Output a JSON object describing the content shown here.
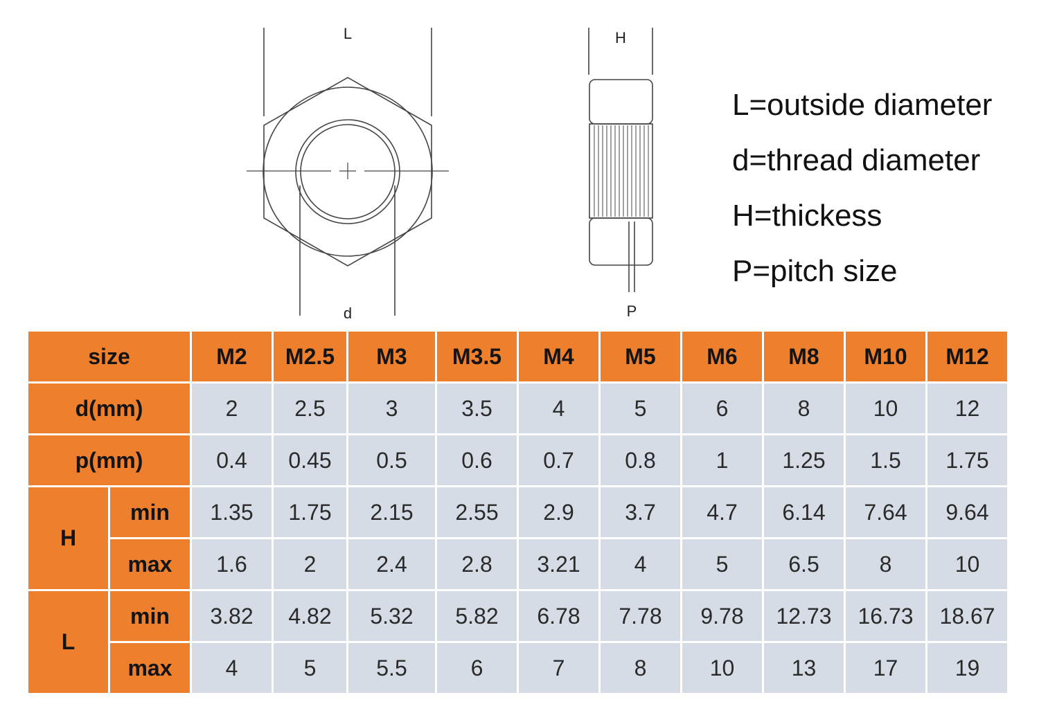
{
  "diagram": {
    "front_view_top_label": "L",
    "front_view_bottom_label": "d",
    "side_view_top_label": "H",
    "side_view_bottom_label": "P"
  },
  "legend": [
    "L=outside diameter",
    "d=thread diameter",
    "H=thickess",
    "P=pitch size"
  ],
  "table": {
    "header_label": "size",
    "sizes": [
      "M2",
      "M2.5",
      "M3",
      "M3.5",
      "M4",
      "M5",
      "M6",
      "M8",
      "M10",
      "M12"
    ],
    "d_label": "d(mm)",
    "d_values": [
      "2",
      "2.5",
      "3",
      "3.5",
      "4",
      "5",
      "6",
      "8",
      "10",
      "12"
    ],
    "p_label": "p(mm)",
    "p_values": [
      "0.4",
      "0.45",
      "0.5",
      "0.6",
      "0.7",
      "0.8",
      "1",
      "1.25",
      "1.5",
      "1.75"
    ],
    "H_label": "H",
    "H_min_label": "min",
    "H_min": [
      "1.35",
      "1.75",
      "2.15",
      "2.55",
      "2.9",
      "3.7",
      "4.7",
      "6.14",
      "7.64",
      "9.64"
    ],
    "H_max_label": "max",
    "H_max": [
      "1.6",
      "2",
      "2.4",
      "2.8",
      "3.21",
      "4",
      "5",
      "6.5",
      "8",
      "10"
    ],
    "L_label": "L",
    "L_min_label": "min",
    "L_min": [
      "3.82",
      "4.82",
      "5.32",
      "5.82",
      "6.78",
      "7.78",
      "9.78",
      "12.73",
      "16.73",
      "18.67"
    ],
    "L_max_label": "max",
    "L_max": [
      "4",
      "5",
      "5.5",
      "6",
      "7",
      "8",
      "10",
      "13",
      "17",
      "19"
    ]
  },
  "colors": {
    "header_orange": "#ee7f2d",
    "cell_gray_blue": "#d6dce5"
  }
}
